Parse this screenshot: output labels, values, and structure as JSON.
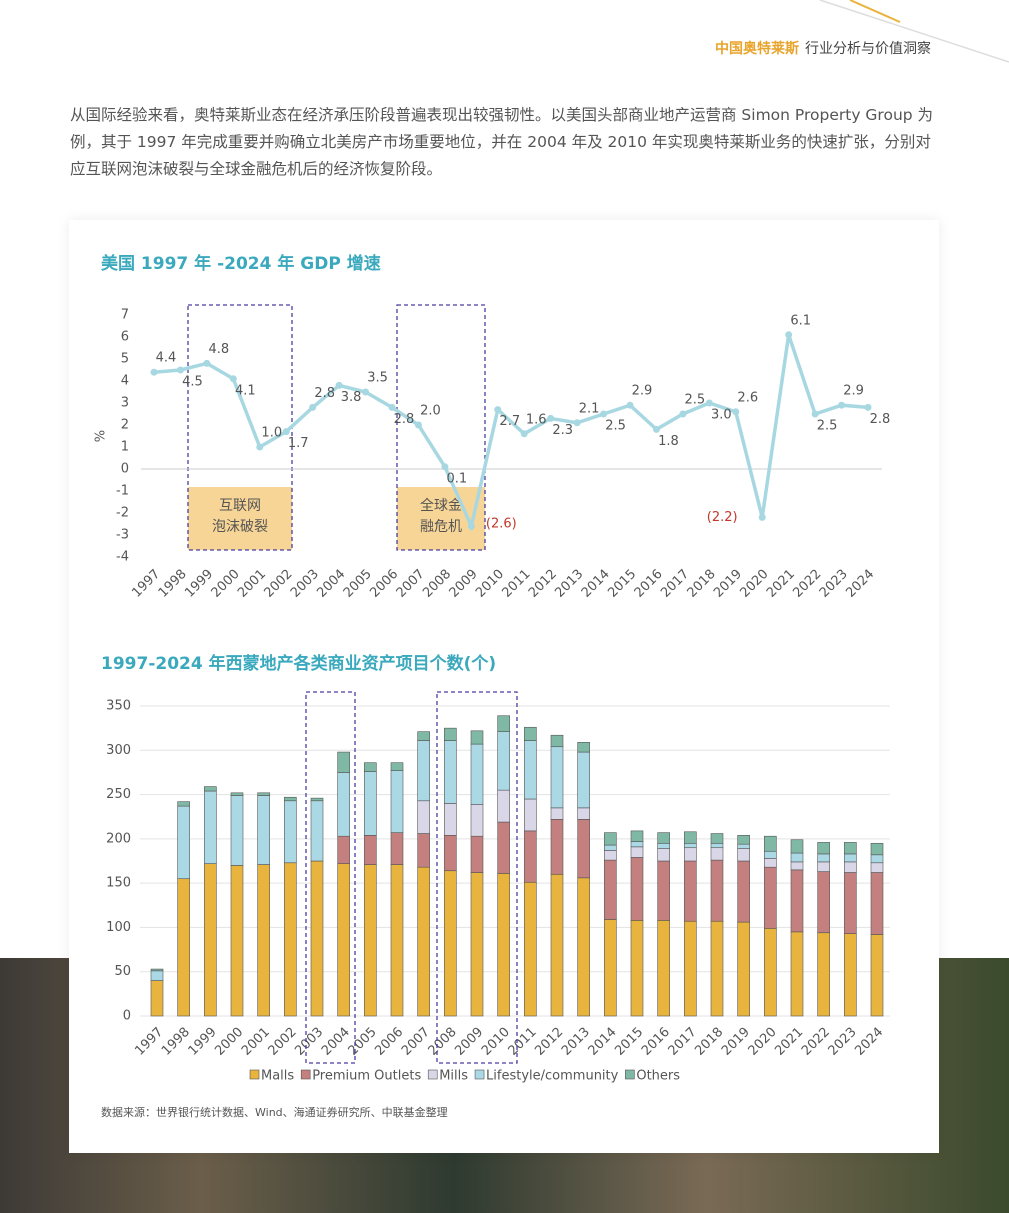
{
  "header": {
    "brand": "中国奥特莱斯",
    "subtitle": "行业分析与价值洞察"
  },
  "body_text": "从国际经验来看，奥特莱斯业态在经济承压阶段普遍表现出较强韧性。以美国头部商业地产运营商 Simon Property Group 为例，其于 1997 年完成重要并购确立北美房产市场重要地位，并在 2004 年及 2010 年实现奥特莱斯业务的快速扩张，分别对应互联网泡沫破裂与全球金融危机后的经济恢复阶段。",
  "chart_data": [
    {
      "type": "line",
      "title": "美国 1997 年 -2024 年 GDP 增速",
      "y_label": "%",
      "categories": [
        "1997",
        "1998",
        "1999",
        "2000",
        "2001",
        "2002",
        "2003",
        "2004",
        "2005",
        "2006",
        "2007",
        "2008",
        "2009",
        "2010",
        "2011",
        "2012",
        "2013",
        "2014",
        "2015",
        "2016",
        "2017",
        "2018",
        "2019",
        "2020",
        "2021",
        "2022",
        "2023",
        "2024"
      ],
      "values": [
        4.4,
        4.5,
        4.8,
        4.1,
        1.0,
        1.7,
        2.8,
        3.8,
        3.5,
        2.8,
        2.0,
        0.1,
        -2.6,
        2.7,
        1.6,
        2.3,
        2.1,
        2.5,
        2.9,
        1.8,
        2.5,
        3.0,
        2.6,
        -2.2,
        6.1,
        2.5,
        2.9,
        2.8
      ],
      "value_labels": [
        "4.4",
        "4.5",
        "4.8",
        "4.1",
        "1.0",
        "1.7",
        "2.8",
        "3.8",
        "3.5",
        "2.8",
        "2.0",
        "0.1",
        "(2.6)",
        "2.7",
        "1.6",
        "2.3",
        "2.1",
        "2.5",
        "2.9",
        "1.8",
        "2.5",
        "3.0",
        "2.6",
        "(2.2)",
        "6.1",
        "2.5",
        "2.9",
        "2.8"
      ],
      "color": "#a7d8e2",
      "ylim": [
        -4,
        7
      ],
      "yticks": [
        -4,
        -3,
        -2,
        -1,
        0,
        1,
        2,
        3,
        4,
        5,
        6,
        7
      ],
      "annotations": [
        [
          "互联网",
          "泡沫破裂"
        ],
        [
          "全球金",
          "融危机"
        ]
      ]
    },
    {
      "type": "stacked_bar",
      "title": "1997-2024 年西蒙地产各类商业资产项目个数(个)",
      "categories": [
        "1997",
        "1998",
        "1999",
        "2000",
        "2001",
        "2002",
        "2003",
        "2004",
        "2005",
        "2006",
        "2007",
        "2008",
        "2009",
        "2010",
        "2011",
        "2012",
        "2013",
        "2014",
        "2015",
        "2016",
        "2017",
        "2018",
        "2019",
        "2020",
        "2021",
        "2022",
        "2023",
        "2024"
      ],
      "ylim": [
        0,
        350
      ],
      "yticks": [
        0,
        50,
        100,
        150,
        200,
        250,
        300,
        350
      ],
      "grid": true,
      "series": [
        {
          "name": "Malls",
          "color": "#e9b43d",
          "values": [
            40,
            155,
            172,
            170,
            171,
            173,
            175,
            172,
            171,
            171,
            168,
            164,
            162,
            161,
            151,
            160,
            156,
            109,
            108,
            108,
            107,
            107,
            106,
            99,
            95,
            94,
            93,
            92
          ]
        },
        {
          "name": "Premium Outlets",
          "color": "#c47f7f",
          "values": [
            0,
            0,
            0,
            0,
            0,
            0,
            0,
            31,
            33,
            36,
            38,
            40,
            41,
            58,
            58,
            62,
            66,
            67,
            71,
            67,
            68,
            69,
            69,
            69,
            70,
            69,
            69,
            70
          ]
        },
        {
          "name": "Mills",
          "color": "#d9d6e8",
          "values": [
            0,
            0,
            0,
            0,
            0,
            0,
            0,
            0,
            0,
            0,
            37,
            36,
            36,
            36,
            36,
            13,
            13,
            11,
            12,
            14,
            15,
            14,
            14,
            10,
            9,
            11,
            12,
            11
          ]
        },
        {
          "name": "Lifestyle/community",
          "color": "#aad9e5",
          "values": [
            11,
            82,
            82,
            79,
            78,
            70,
            68,
            72,
            72,
            70,
            68,
            71,
            68,
            66,
            66,
            69,
            63,
            6,
            6,
            6,
            5,
            5,
            5,
            8,
            10,
            9,
            9,
            9
          ]
        },
        {
          "name": "Others",
          "color": "#7fb9a5",
          "values": [
            2,
            5,
            5,
            3,
            3,
            4,
            3,
            23,
            10,
            9,
            10,
            14,
            15,
            18,
            15,
            13,
            11,
            14,
            12,
            12,
            13,
            11,
            10,
            17,
            15,
            13,
            13,
            13
          ]
        }
      ]
    }
  ],
  "source": "数据来源：世界银行统计数据、Wind、海通证券研究所、中联基金整理"
}
